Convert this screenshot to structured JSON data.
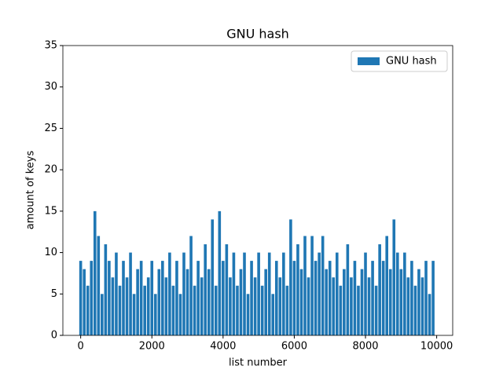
{
  "chart_data": {
    "type": "bar",
    "title": "GNU hash",
    "xlabel": "list number",
    "ylabel": "amount of keys",
    "x": [
      0,
      100,
      200,
      300,
      400,
      500,
      600,
      700,
      800,
      900,
      1000,
      1100,
      1200,
      1300,
      1400,
      1500,
      1600,
      1700,
      1800,
      1900,
      2000,
      2100,
      2200,
      2300,
      2400,
      2500,
      2600,
      2700,
      2800,
      2900,
      3000,
      3100,
      3200,
      3300,
      3400,
      3500,
      3600,
      3700,
      3800,
      3900,
      4000,
      4100,
      4200,
      4300,
      4400,
      4500,
      4600,
      4700,
      4800,
      4900,
      5000,
      5100,
      5200,
      5300,
      5400,
      5500,
      5600,
      5700,
      5800,
      5900,
      6000,
      6100,
      6200,
      6300,
      6400,
      6500,
      6600,
      6700,
      6800,
      6900,
      7000,
      7100,
      7200,
      7300,
      7400,
      7500,
      7600,
      7700,
      7800,
      7900,
      8000,
      8100,
      8200,
      8300,
      8400,
      8500,
      8600,
      8700,
      8800,
      8900,
      9000,
      9100,
      9200,
      9300,
      9400,
      9500,
      9600,
      9700,
      9800,
      9900
    ],
    "series": [
      {
        "name": "GNU hash",
        "color": "#1f77b4",
        "values": [
          9,
          8,
          6,
          9,
          15,
          12,
          5,
          11,
          9,
          7,
          10,
          6,
          9,
          7,
          10,
          5,
          8,
          9,
          6,
          7,
          9,
          5,
          8,
          9,
          7,
          10,
          6,
          9,
          5,
          10,
          8,
          12,
          6,
          9,
          7,
          11,
          8,
          14,
          6,
          15,
          9,
          11,
          7,
          10,
          6,
          8,
          10,
          5,
          9,
          7,
          10,
          6,
          8,
          10,
          5,
          9,
          7,
          10,
          6,
          14,
          9,
          11,
          8,
          12,
          7,
          12,
          9,
          10,
          12,
          8,
          9,
          7,
          10,
          6,
          8,
          11,
          7,
          9,
          6,
          8,
          10,
          7,
          9,
          6,
          11,
          9,
          12,
          8,
          14,
          10,
          8,
          10,
          7,
          9,
          6,
          8,
          7,
          9,
          5,
          9
        ]
      }
    ],
    "xlim": [
      -500,
      10450
    ],
    "xticks": [
      0,
      2000,
      4000,
      6000,
      8000,
      10000
    ],
    "ylim": [
      0,
      35
    ],
    "yticks": [
      0,
      5,
      10,
      15,
      20,
      25,
      30,
      35
    ],
    "legend": "upper right"
  }
}
